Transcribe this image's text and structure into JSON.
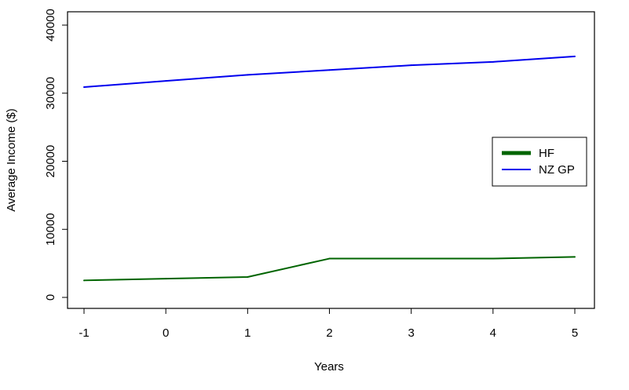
{
  "chart_data": {
    "type": "line",
    "title": "",
    "xlabel": "Years",
    "ylabel": "Average Income ($)",
    "x": [
      -1,
      0,
      1,
      2,
      3,
      4,
      5
    ],
    "xlim": [
      -1,
      5
    ],
    "ylim": [
      0,
      40000
    ],
    "x_ticks": [
      "-1",
      "0",
      "1",
      "2",
      "3",
      "4",
      "5"
    ],
    "y_ticks": [
      "0",
      "10000",
      "20000",
      "30000",
      "40000"
    ],
    "grid": false,
    "legend_position": "right",
    "series": [
      {
        "name": "HF",
        "color": "#006400",
        "values": [
          2500,
          2750,
          3000,
          5700,
          5700,
          5700,
          5950
        ]
      },
      {
        "name": "NZ GP",
        "color": "#0000ee",
        "values": [
          30900,
          31800,
          32700,
          33400,
          34100,
          34600,
          35400
        ]
      }
    ]
  }
}
